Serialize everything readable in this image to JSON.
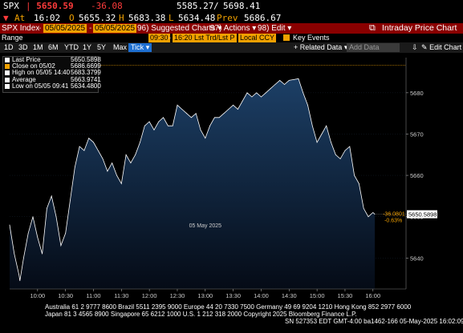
{
  "quote": {
    "ticker": "SPX",
    "last": "5650.59",
    "change": "-36.08",
    "range_low": "5585.27",
    "range_sep": "/",
    "range_high": "5698.41",
    "at_label": "At",
    "at_time": "16:02",
    "open_label": "O",
    "open_value": "5655.32",
    "high_label": "H",
    "high_value": "5683.38",
    "low_label": "L",
    "low_value": "5634.48",
    "prev_label": "Prev",
    "prev_value": "5686.67"
  },
  "menubar": {
    "security": "SPX Index",
    "date_from": "05/05/2025",
    "date_to": "05/05/2025",
    "suggested": "Suggested Charts",
    "actions": "Actions",
    "edit": "Edit",
    "title": "Intraday Price Chart"
  },
  "toolbar": {
    "range_label": "Range",
    "time_from": "09:30",
    "time_to": "16:20",
    "field_mode": "Lst Trd/Lst P",
    "currency": "Local CCY",
    "key_events": "Key Events"
  },
  "periods": {
    "items": [
      "1D",
      "3D",
      "1M",
      "6M",
      "YTD",
      "1Y",
      "5Y",
      "Max"
    ],
    "tick_label": "Tick",
    "related": "Related Data",
    "add_data": "Add Data",
    "edit_chart": "Edit Chart"
  },
  "legend": [
    {
      "name": "Last Price",
      "value": "5650.5898",
      "color": "#ffffff"
    },
    {
      "name": "Close on 05/02",
      "value": "5686.6699",
      "color": "#f0a000"
    },
    {
      "name": "High on 05/05 14:40",
      "value": "5683.3799",
      "color": "#ffffff"
    },
    {
      "name": "Average",
      "value": "5663.9741",
      "color": "#ffffff"
    },
    {
      "name": "Low on 05/05 09:41",
      "value": "5634.4800",
      "color": "#ffffff"
    }
  ],
  "chart_data": {
    "type": "area",
    "x_unit": "time",
    "date_label": "05 May 2025",
    "xlim": [
      "09:30",
      "16:20"
    ],
    "ylim": [
      5632.5,
      5688.5
    ],
    "y_ticks": [
      "5640",
      "5650",
      "5660",
      "5670",
      "5680"
    ],
    "x_ticks": [
      "10:00",
      "10:30",
      "11:00",
      "11:30",
      "12:00",
      "12:30",
      "13:00",
      "13:30",
      "14:00",
      "14:30",
      "15:00",
      "15:30",
      "16:00"
    ],
    "prev_close": 5686.67,
    "last_value_label": "5650.5898",
    "change_label": "-36.0801",
    "change_pct_label": "-0.63%",
    "series": [
      {
        "x": [
          "09:30",
          "09:35",
          "09:40",
          "09:41",
          "09:45",
          "09:50",
          "09:55",
          "10:00",
          "10:05",
          "10:10",
          "10:15",
          "10:20",
          "10:25",
          "10:30",
          "10:35",
          "10:40",
          "10:45",
          "10:50",
          "10:55",
          "11:00",
          "11:05",
          "11:10",
          "11:15",
          "11:20",
          "11:25",
          "11:30",
          "11:35",
          "11:40",
          "11:45",
          "11:50",
          "11:55",
          "12:00",
          "12:05",
          "12:10",
          "12:15",
          "12:20",
          "12:25",
          "12:30",
          "12:35",
          "12:40",
          "12:45",
          "12:50",
          "12:55",
          "13:00",
          "13:05",
          "13:10",
          "13:15",
          "13:20",
          "13:25",
          "13:30",
          "13:35",
          "13:40",
          "13:45",
          "13:50",
          "13:55",
          "14:00",
          "14:05",
          "14:10",
          "14:15",
          "14:20",
          "14:25",
          "14:30",
          "14:35",
          "14:40",
          "14:45",
          "14:50",
          "14:55",
          "15:00",
          "15:05",
          "15:10",
          "15:15",
          "15:20",
          "15:25",
          "15:30",
          "15:35",
          "15:40",
          "15:45",
          "15:50",
          "15:55",
          "16:00",
          "16:02"
        ],
        "values": [
          5648,
          5641,
          5636,
          5634.5,
          5640,
          5646,
          5650,
          5645,
          5641,
          5652,
          5655,
          5650,
          5643,
          5646,
          5654,
          5662,
          5667,
          5666,
          5669,
          5668,
          5666,
          5664,
          5661,
          5663,
          5660,
          5658,
          5665,
          5663,
          5665,
          5668,
          5672,
          5673,
          5671,
          5673,
          5674,
          5672,
          5672,
          5677,
          5676,
          5675,
          5674,
          5675,
          5671,
          5669,
          5672,
          5674,
          5674,
          5675,
          5676,
          5677,
          5676,
          5678,
          5680,
          5679,
          5680,
          5679,
          5680,
          5681,
          5682,
          5683,
          5682,
          5683,
          5683.2,
          5683.4,
          5680,
          5677,
          5672,
          5668,
          5670,
          5672,
          5668,
          5665,
          5664,
          5666,
          5667,
          5660,
          5658,
          5652,
          5650,
          5651,
          5650.59
        ]
      }
    ]
  },
  "footer": {
    "line1": "Australia 61 2 9777 8600 Brazil 5511 2395 9000 Europe 44 20 7330 7500 Germany 49 69 9204 1210 Hong Kong 852 2977 6000",
    "line2": "Japan 81 3 4565 8900          Singapore 65 6212 1000          U.S. 1 212 318 2000          Copyright 2025 Bloomberg Finance L.P.",
    "line3": "SN 527353 EDT  GMT-4:00 ba1462-166 05-May-2025 16:02:09"
  },
  "colors": {
    "accent": "#f0a000",
    "bar": "#8a0000",
    "down": "#ff3b3b",
    "area_top": "#1c3f66",
    "area_bottom": "#050b16"
  }
}
